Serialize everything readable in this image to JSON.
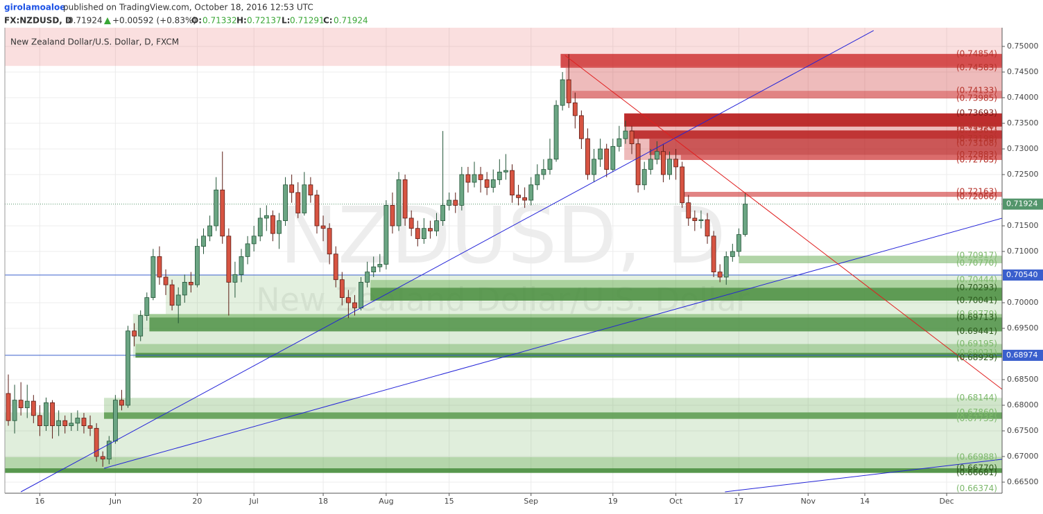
{
  "header": {
    "author": "girolamoaloe",
    "published": "published on TradingView.com, October 18, 2016 12:53 UTC",
    "symbol": "FX:NZDUSD, D",
    "last": "0.71924",
    "change": "+0.00592 (+0.83%)",
    "open_label": "O:",
    "open": "0.71332",
    "high_label": "H:",
    "high": "0.72137",
    "low_label": "L:",
    "low": "0.71291",
    "close_label": "C:",
    "close": "0.71924"
  },
  "chart_data": {
    "type": "candlestick",
    "title": "New Zealand Dollar/U.S. Dollar, D, FXCM",
    "watermark": "NZDUSD, D",
    "watermark_sub": "New Zealand Dollar/U.S. Dollar",
    "up_color": "#6ba583",
    "down_color": "#d75442",
    "grid": true,
    "xlim": [
      -0.55,
      157.8
    ],
    "ylim": [
      0.66311,
      0.75365
    ],
    "xticks": [
      {
        "value": 5,
        "label": "16"
      },
      {
        "value": 17,
        "label": "Jun"
      },
      {
        "value": 30,
        "label": "20"
      },
      {
        "value": 39,
        "label": "Jul"
      },
      {
        "value": 50,
        "label": "18"
      },
      {
        "value": 60,
        "label": "Aug"
      },
      {
        "value": 70,
        "label": "15"
      },
      {
        "value": 83,
        "label": "Sep"
      },
      {
        "value": 96,
        "label": "19"
      },
      {
        "value": 106,
        "label": "Oct"
      },
      {
        "value": 116,
        "label": "17"
      },
      {
        "value": 127,
        "label": "Nov"
      },
      {
        "value": 136,
        "label": "14"
      },
      {
        "value": 149,
        "label": "Dec"
      }
    ],
    "yticks": [
      {
        "value": 0.665,
        "label": "0.66500"
      },
      {
        "value": 0.67,
        "label": "0.67000"
      },
      {
        "value": 0.675,
        "label": "0.67500"
      },
      {
        "value": 0.68,
        "label": "0.68000"
      },
      {
        "value": 0.685,
        "label": "0.68500"
      },
      {
        "value": 0.695,
        "label": "0.69500"
      },
      {
        "value": 0.7,
        "label": "0.70000"
      },
      {
        "value": 0.71,
        "label": "0.71000"
      },
      {
        "value": 0.715,
        "label": "0.71500"
      },
      {
        "value": 0.725,
        "label": "0.72500"
      },
      {
        "value": 0.73,
        "label": "0.73000"
      },
      {
        "value": 0.735,
        "label": "0.73500"
      },
      {
        "value": 0.74,
        "label": "0.74000"
      },
      {
        "value": 0.745,
        "label": "0.74500"
      },
      {
        "value": 0.75,
        "label": "0.75000"
      }
    ],
    "x": [
      0,
      1,
      2,
      3,
      4,
      5,
      6,
      7,
      8,
      9,
      10,
      11,
      12,
      13,
      14,
      15,
      16,
      17,
      18,
      19,
      20,
      21,
      22,
      23,
      24,
      25,
      26,
      27,
      28,
      29,
      30,
      31,
      32,
      33,
      34,
      35,
      36,
      37,
      38,
      39,
      40,
      41,
      42,
      43,
      44,
      45,
      46,
      47,
      48,
      49,
      50,
      51,
      52,
      53,
      54,
      55,
      56,
      57,
      58,
      59,
      60,
      61,
      62,
      63,
      64,
      65,
      66,
      67,
      68,
      69,
      70,
      71,
      72,
      73,
      74,
      75,
      76,
      77,
      78,
      79,
      80,
      81,
      82,
      83,
      84,
      85,
      86,
      87,
      88,
      89,
      90,
      91,
      92,
      93,
      94,
      95,
      96,
      97,
      98,
      99,
      100,
      101,
      102,
      103,
      104,
      105,
      106,
      107,
      108,
      109,
      110,
      111,
      112,
      113,
      114,
      115,
      116,
      117
    ],
    "open": [
      0.6823,
      0.677,
      0.681,
      0.6795,
      0.6808,
      0.678,
      0.676,
      0.6805,
      0.676,
      0.677,
      0.676,
      0.6765,
      0.6775,
      0.676,
      0.6755,
      0.67,
      0.6695,
      0.673,
      0.681,
      0.68,
      0.6945,
      0.6935,
      0.6975,
      0.701,
      0.709,
      0.705,
      0.7035,
      0.6995,
      0.7015,
      0.704,
      0.7035,
      0.711,
      0.713,
      0.715,
      0.722,
      0.713,
      0.704,
      0.7055,
      0.709,
      0.7115,
      0.713,
      0.7165,
      0.717,
      0.7135,
      0.716,
      0.723,
      0.7215,
      0.7175,
      0.723,
      0.721,
      0.715,
      0.7145,
      0.7095,
      0.7045,
      0.701,
      0.7,
      0.699,
      0.704,
      0.706,
      0.707,
      0.7075,
      0.719,
      0.715,
      0.724,
      0.7165,
      0.7145,
      0.7125,
      0.7145,
      0.714,
      0.716,
      0.719,
      0.72,
      0.719,
      0.725,
      0.7235,
      0.725,
      0.724,
      0.7225,
      0.724,
      0.7255,
      0.7258,
      0.721,
      0.7205,
      0.72,
      0.723,
      0.725,
      0.726,
      0.728,
      0.7385,
      0.7435,
      0.739,
      0.7365,
      0.732,
      0.725,
      0.728,
      0.73,
      0.726,
      0.7305,
      0.732,
      0.7335,
      0.731,
      0.723,
      0.726,
      0.728,
      0.7295,
      0.725,
      0.728,
      0.7265,
      0.7195,
      0.7165,
      0.716,
      0.7162,
      0.713,
      0.706,
      0.705,
      0.709,
      0.71,
      0.71332
    ],
    "high": [
      0.686,
      0.684,
      0.6845,
      0.684,
      0.682,
      0.68,
      0.6815,
      0.681,
      0.679,
      0.678,
      0.6785,
      0.679,
      0.6785,
      0.678,
      0.6765,
      0.671,
      0.674,
      0.682,
      0.683,
      0.6955,
      0.696,
      0.6985,
      0.702,
      0.7105,
      0.711,
      0.7065,
      0.7045,
      0.703,
      0.7055,
      0.706,
      0.7125,
      0.7145,
      0.717,
      0.7245,
      0.7295,
      0.7145,
      0.708,
      0.7105,
      0.713,
      0.715,
      0.7185,
      0.719,
      0.718,
      0.7175,
      0.7245,
      0.725,
      0.7235,
      0.7255,
      0.7245,
      0.722,
      0.717,
      0.7155,
      0.711,
      0.706,
      0.7025,
      0.7015,
      0.705,
      0.708,
      0.709,
      0.7095,
      0.72,
      0.7215,
      0.7255,
      0.725,
      0.718,
      0.716,
      0.7165,
      0.716,
      0.7175,
      0.7335,
      0.7215,
      0.7215,
      0.7265,
      0.7265,
      0.7275,
      0.7265,
      0.7255,
      0.726,
      0.728,
      0.729,
      0.727,
      0.723,
      0.7225,
      0.7245,
      0.727,
      0.728,
      0.732,
      0.7395,
      0.745,
      0.7485,
      0.741,
      0.7375,
      0.734,
      0.73,
      0.732,
      0.731,
      0.732,
      0.7345,
      0.7355,
      0.7345,
      0.732,
      0.7275,
      0.73,
      0.7315,
      0.731,
      0.7295,
      0.73,
      0.7275,
      0.721,
      0.718,
      0.718,
      0.7175,
      0.714,
      0.7075,
      0.71,
      0.7115,
      0.7145,
      0.72137
    ],
    "low": [
      0.676,
      0.6745,
      0.678,
      0.6775,
      0.6765,
      0.674,
      0.675,
      0.6735,
      0.674,
      0.6745,
      0.675,
      0.675,
      0.6745,
      0.674,
      0.669,
      0.668,
      0.6685,
      0.6725,
      0.679,
      0.6795,
      0.6915,
      0.6925,
      0.6965,
      0.7005,
      0.7035,
      0.7015,
      0.6985,
      0.696,
      0.7,
      0.702,
      0.703,
      0.7095,
      0.712,
      0.714,
      0.7115,
      0.6975,
      0.701,
      0.704,
      0.7075,
      0.71,
      0.712,
      0.714,
      0.712,
      0.7105,
      0.715,
      0.7195,
      0.7165,
      0.717,
      0.7195,
      0.7135,
      0.712,
      0.7075,
      0.703,
      0.6995,
      0.697,
      0.6975,
      0.6985,
      0.703,
      0.705,
      0.706,
      0.7065,
      0.7135,
      0.714,
      0.715,
      0.713,
      0.711,
      0.7115,
      0.7125,
      0.713,
      0.715,
      0.718,
      0.7175,
      0.718,
      0.7215,
      0.7225,
      0.7215,
      0.721,
      0.7215,
      0.723,
      0.724,
      0.7195,
      0.719,
      0.7185,
      0.719,
      0.722,
      0.724,
      0.725,
      0.7275,
      0.7375,
      0.738,
      0.734,
      0.73,
      0.724,
      0.7235,
      0.7265,
      0.7245,
      0.7255,
      0.7295,
      0.731,
      0.729,
      0.7215,
      0.722,
      0.725,
      0.727,
      0.7235,
      0.724,
      0.724,
      0.7185,
      0.715,
      0.714,
      0.7145,
      0.7115,
      0.705,
      0.704,
      0.7035,
      0.708,
      0.709,
      0.71291
    ],
    "close": [
      0.677,
      0.681,
      0.6795,
      0.6808,
      0.678,
      0.676,
      0.6805,
      0.676,
      0.677,
      0.676,
      0.6765,
      0.6775,
      0.676,
      0.6755,
      0.67,
      0.6695,
      0.673,
      0.681,
      0.68,
      0.6945,
      0.6935,
      0.6975,
      0.701,
      0.709,
      0.705,
      0.7035,
      0.6995,
      0.7015,
      0.704,
      0.7035,
      0.711,
      0.713,
      0.715,
      0.722,
      0.713,
      0.704,
      0.7055,
      0.709,
      0.7115,
      0.713,
      0.7165,
      0.717,
      0.7135,
      0.716,
      0.723,
      0.7215,
      0.7175,
      0.723,
      0.721,
      0.715,
      0.7145,
      0.7095,
      0.7045,
      0.701,
      0.7,
      0.699,
      0.704,
      0.706,
      0.707,
      0.7075,
      0.719,
      0.715,
      0.724,
      0.7165,
      0.7145,
      0.7125,
      0.7145,
      0.714,
      0.716,
      0.719,
      0.72,
      0.719,
      0.725,
      0.7235,
      0.725,
      0.724,
      0.7225,
      0.724,
      0.7255,
      0.7258,
      0.721,
      0.7205,
      0.72,
      0.723,
      0.725,
      0.726,
      0.728,
      0.7385,
      0.7435,
      0.739,
      0.7365,
      0.732,
      0.725,
      0.728,
      0.73,
      0.726,
      0.7305,
      0.732,
      0.7335,
      0.731,
      0.723,
      0.726,
      0.728,
      0.7295,
      0.725,
      0.728,
      0.7265,
      0.7195,
      0.7165,
      0.716,
      0.7162,
      0.713,
      0.706,
      0.705,
      0.709,
      0.71,
      0.7133,
      0.71924
    ],
    "zones": [
      {
        "x0": -0.55,
        "range": [
          0.7462,
          0.75365
        ],
        "color": "rgba(230,80,80,0.18)"
      },
      {
        "x0": 87.7,
        "range": [
          0.74583,
          0.74854
        ],
        "color": "rgba(200,30,30,0.75)"
      },
      {
        "x0": 88.5,
        "range": [
          0.73985,
          0.74583
        ],
        "color": "rgba(200,30,30,0.3)"
      },
      {
        "x0": 89.5,
        "range": [
          0.73985,
          0.74133
        ],
        "color": "rgba(200,30,30,0.35)"
      },
      {
        "x0": 97.8,
        "range": [
          0.72785,
          0.73693
        ],
        "color": "rgba(200,30,30,0.3)"
      },
      {
        "x0": 97.8,
        "range": [
          0.73436,
          0.73693
        ],
        "color": "rgba(180,20,20,0.85)"
      },
      {
        "x0": 98.7,
        "range": [
          0.73198,
          0.73361
        ],
        "color": "rgba(180,20,20,0.8)"
      },
      {
        "x0": 101.8,
        "range": [
          0.72883,
          0.73198
        ],
        "color": "rgba(180,20,20,0.6)"
      },
      {
        "x0": 106.8,
        "range": [
          0.72785,
          0.72883
        ],
        "color": "rgba(200,30,30,0.5)"
      },
      {
        "x0": 107.3,
        "range": [
          0.72066,
          0.72163
        ],
        "color": "rgba(200,30,30,0.55)"
      },
      {
        "x0": 116,
        "range": [
          0.7077,
          0.70917
        ],
        "color": "rgba(100,170,80,0.5)"
      },
      {
        "x0": 25,
        "range": [
          0.6978,
          0.7054
        ],
        "color": "rgba(100,170,80,0.18)"
      },
      {
        "x0": 57.5,
        "range": [
          0.70293,
          0.70444
        ],
        "color": "rgba(100,170,80,0.45)"
      },
      {
        "x0": 57.5,
        "range": [
          0.70041,
          0.70293
        ],
        "color": "rgba(70,140,60,0.85)"
      },
      {
        "x0": 19.8,
        "range": [
          0.68929,
          0.6978
        ],
        "color": "rgba(100,170,80,0.22)"
      },
      {
        "x0": 22.4,
        "range": [
          0.69713,
          0.69779
        ],
        "color": "rgba(100,170,80,0.5)"
      },
      {
        "x0": 22.4,
        "range": [
          0.69441,
          0.69713
        ],
        "color": "rgba(70,140,60,0.8)"
      },
      {
        "x0": 20.2,
        "range": [
          0.68929,
          0.69195
        ],
        "color": "rgba(100,170,80,0.4)"
      },
      {
        "x0": 20.2,
        "range": [
          0.68929,
          0.69021
        ],
        "color": "rgba(70,140,60,0.85)"
      },
      {
        "x0": 15.2,
        "range": [
          0.67735,
          0.68144
        ],
        "color": "rgba(100,170,80,0.3)"
      },
      {
        "x0": 15.2,
        "range": [
          0.67735,
          0.6786
        ],
        "color": "rgba(70,140,60,0.7)"
      },
      {
        "x0": -0.55,
        "range": [
          0.66681,
          0.6786
        ],
        "color": "rgba(100,170,80,0.2)"
      },
      {
        "x0": -0.55,
        "range": [
          0.66681,
          0.66988
        ],
        "color": "rgba(100,170,80,0.35)"
      },
      {
        "x0": -0.55,
        "range": [
          0.66681,
          0.6677
        ],
        "color": "rgba(70,140,60,0.85)"
      }
    ],
    "levels": [
      {
        "value": 0.74854,
        "label": "(0.74854)",
        "color": "#b5322a"
      },
      {
        "value": 0.74583,
        "label": "(0.74583)",
        "color": "#b5322a"
      },
      {
        "value": 0.74133,
        "label": "(0.74133)",
        "color": "#b5322a"
      },
      {
        "value": 0.73985,
        "label": "(0.73985)",
        "color": "#b5322a"
      },
      {
        "value": 0.73693,
        "label": "(0.73693)",
        "color": "#7a1a14"
      },
      {
        "value": 0.73436,
        "label": "(0.73436)",
        "color": "#b5322a"
      },
      {
        "value": 0.73361,
        "label": "(0.73361)",
        "color": "#b5322a"
      },
      {
        "value": 0.73198,
        "label": "(0.73198)",
        "color": "#b5322a"
      },
      {
        "value": 0.73108,
        "label": "(0.73108)",
        "color": "#b5322a"
      },
      {
        "value": 0.72883,
        "label": "(0.72883)",
        "color": "#b5322a"
      },
      {
        "value": 0.72785,
        "label": "(0.72785)",
        "color": "#b5322a"
      },
      {
        "value": 0.72163,
        "label": "(0.72163)",
        "color": "#b5322a"
      },
      {
        "value": 0.72066,
        "label": "(0.72066)",
        "color": "#b5322a"
      },
      {
        "value": 0.70917,
        "label": "(0.70917)",
        "color": "#7cb86b"
      },
      {
        "value": 0.7077,
        "label": "(0.70770)",
        "color": "#7cb86b"
      },
      {
        "value": 0.70444,
        "label": "(0.70444)",
        "color": "#7cb86b"
      },
      {
        "value": 0.70293,
        "label": "(0.70293)",
        "color": "#2d5a1e"
      },
      {
        "value": 0.70041,
        "label": "(0.70041)",
        "color": "#2d5a1e"
      },
      {
        "value": 0.69779,
        "label": "(0.69779)",
        "color": "#7cb86b"
      },
      {
        "value": 0.69713,
        "label": "(0.69713)",
        "color": "#2d5a1e"
      },
      {
        "value": 0.69441,
        "label": "(0.69441)",
        "color": "#2d5a1e"
      },
      {
        "value": 0.69195,
        "label": "(0.69195)",
        "color": "#7cb86b"
      },
      {
        "value": 0.69021,
        "label": "(0.69021)",
        "color": "#7cb86b"
      },
      {
        "value": 0.68929,
        "label": "(0.68929)",
        "color": "#2d5a1e"
      },
      {
        "value": 0.68144,
        "label": "(0.68144)",
        "color": "#7cb86b"
      },
      {
        "value": 0.6786,
        "label": "(0.67860)",
        "color": "#7cb86b"
      },
      {
        "value": 0.67735,
        "label": "(0.67735)",
        "color": "#7cb86b"
      },
      {
        "value": 0.66988,
        "label": "(0.66988)",
        "color": "#7cb86b"
      },
      {
        "value": 0.6677,
        "label": "(0.66770)",
        "color": "#2d5a1e"
      },
      {
        "value": 0.66681,
        "label": "(0.66681)",
        "color": "#2d5a1e"
      },
      {
        "value": 0.66374,
        "label": "(0.66374)",
        "color": "#7cb86b"
      }
    ],
    "hlines": [
      {
        "value": 0.7054,
        "label": "0.70540",
        "color": "#3a5fcd"
      },
      {
        "value": 0.68974,
        "label": "0.68974",
        "color": "#3a5fcd"
      },
      {
        "value": 0.71924,
        "label": "0.71924",
        "color": "#53956b"
      }
    ],
    "trendlines": [
      {
        "x": [
          2.0,
          137.4
        ],
        "y": [
          0.66311,
          0.7531
        ],
        "color": "#2323d8"
      },
      {
        "x": [
          15.2,
          157.8
        ],
        "y": [
          0.6677,
          0.71649
        ],
        "color": "#2323d8"
      },
      {
        "x": [
          113.8,
          157.8
        ],
        "y": [
          0.66311,
          0.66946
        ],
        "color": "#2323d8"
      },
      {
        "x": [
          88.4,
          157.8
        ],
        "y": [
          0.74824,
          0.68311
        ],
        "color": "#e02020"
      }
    ]
  }
}
